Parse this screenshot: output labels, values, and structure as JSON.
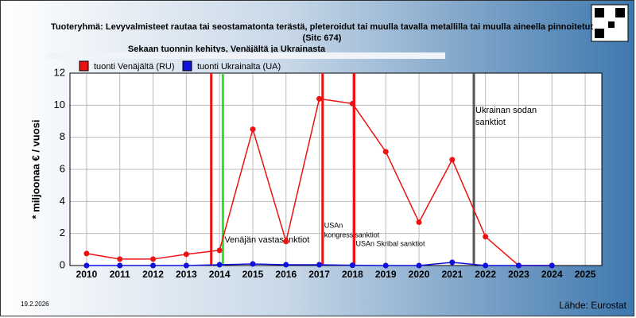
{
  "chart_data": {
    "type": "line",
    "title": [
      "Tuoteryhmä: Levyvalmisteet rautaa tai seostamatonta terästä, pleteroidut tai muulla tavalla metallilla tai muulla aineella pinnoitetut",
      "(Sitc 674)",
      "Sekaan tuonnin kehitys, Venäjältä ja Ukrainasta"
    ],
    "y_label": "* miljoonaa € / vuosi",
    "x": [
      2010,
      2011,
      2012,
      2013,
      2014,
      2015,
      2016,
      2017,
      2018,
      2019,
      2020,
      2021,
      2022,
      2023,
      2024,
      2025
    ],
    "series": [
      {
        "name": "tuonti Venäjältä (RU)",
        "color": "#ee1111",
        "values": [
          0.75,
          0.4,
          0.4,
          0.7,
          0.95,
          8.5,
          1.5,
          10.4,
          10.1,
          7.1,
          2.7,
          6.6,
          1.8,
          0,
          0,
          null
        ]
      },
      {
        "name": "tuonti Ukrainalta (UA)",
        "color": "#1111dd",
        "values": [
          0,
          0,
          0,
          0,
          0.05,
          0.1,
          0.05,
          0.05,
          0.02,
          0,
          0,
          0.2,
          0,
          0,
          0,
          null
        ]
      }
    ],
    "xlim": [
      2009.5,
      2025.5
    ],
    "xticks": [
      2010,
      2011,
      2012,
      2013,
      2014,
      2015,
      2016,
      2017,
      2018,
      2019,
      2020,
      2021,
      2022,
      2023,
      2024,
      2025
    ],
    "ylim": [
      0,
      12
    ],
    "yticks": [
      0,
      2,
      4,
      6,
      8,
      10,
      12
    ],
    "grid": true,
    "events": [
      {
        "x": 2013.75,
        "color": "#ee1111",
        "label": []
      },
      {
        "x": 2014.1,
        "color": "#33dd33",
        "label": [
          "Venäjän vastasanktiot"
        ]
      },
      {
        "x": 2017.1,
        "color": "#ee1111",
        "label": [
          "USAn",
          "kongressisanktiot"
        ]
      },
      {
        "x": 2018.05,
        "color": "#ee1111",
        "label": [
          "USAn Skribal sanktiot"
        ]
      },
      {
        "x": 2021.65,
        "color": "#555555",
        "label": [
          "Ukrainan sodan",
          "sanktiot"
        ]
      }
    ],
    "date": "19.2.2026",
    "source": "Lähde: Eurostat"
  }
}
